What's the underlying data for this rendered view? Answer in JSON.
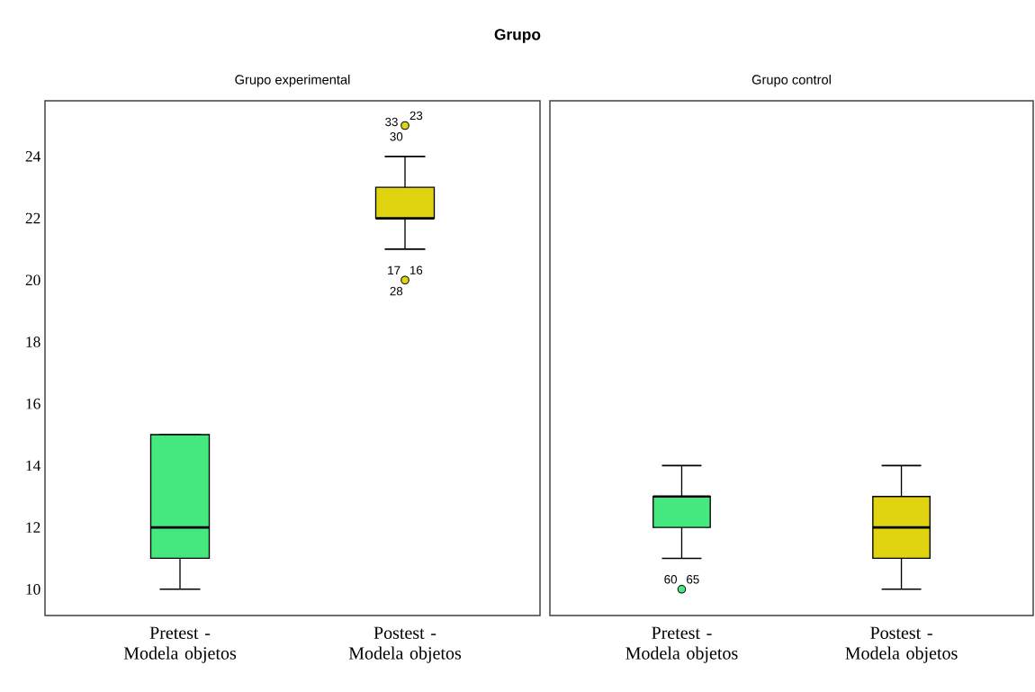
{
  "chart_data": [
    {
      "type": "box",
      "title": "Grupo",
      "subtitle": "Grupo experimental",
      "categories": [
        "Pretest - Modela objetos",
        "Postest -  Modela objetos"
      ],
      "colors": [
        "#44e87e",
        "#e0d30f"
      ],
      "boxes": [
        {
          "low": 10,
          "q1": 11,
          "median": 12,
          "q3": 15,
          "high": 15
        },
        {
          "low": 21,
          "q1": 22,
          "median": 22,
          "q3": 23,
          "high": 24,
          "outliers": [
            25,
            20
          ]
        }
      ],
      "ylim": [
        9.15,
        25.8
      ],
      "yticks": [
        10,
        12,
        14,
        16,
        18,
        20,
        22,
        24
      ],
      "annotations": [
        "33",
        "23",
        "30",
        "17",
        "16",
        "28"
      ]
    },
    {
      "type": "box",
      "subtitle": "Grupo control",
      "categories": [
        "Pretest - Modela objetos",
        "Postest -  Modela objetos"
      ],
      "colors": [
        "#44e87e",
        "#e0d30f"
      ],
      "boxes": [
        {
          "low": 11,
          "q1": 12,
          "median": 13,
          "q3": 13,
          "high": 14,
          "outliers": [
            10
          ]
        },
        {
          "low": 10,
          "q1": 11,
          "median": 12,
          "q3": 13,
          "high": 14
        }
      ],
      "ylim": [
        9.15,
        25.8
      ],
      "yticks": [
        10,
        12,
        14,
        16,
        18,
        20,
        22,
        24
      ],
      "tick_labels": "x",
      "annotations": [
        "60",
        "65"
      ]
    }
  ]
}
